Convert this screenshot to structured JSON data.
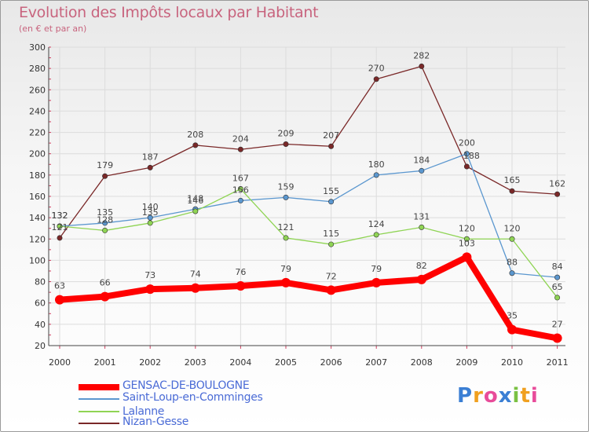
{
  "chart_data": {
    "type": "line",
    "title": "Evolution des Impôts locaux par Habitant",
    "subtitle": "(en € et par an)",
    "xlabel": "",
    "ylabel": "",
    "ylim": [
      20,
      300
    ],
    "y_ticks": [
      "20",
      "40",
      "60",
      "80",
      "100",
      "120",
      "140",
      "160",
      "180",
      "200",
      "220",
      "240",
      "260",
      "280",
      "300"
    ],
    "categories": [
      "2000",
      "2001",
      "2002",
      "2003",
      "2004",
      "2005",
      "2006",
      "2007",
      "2008",
      "2009",
      "2010",
      "2011"
    ],
    "grid": true,
    "legend_position": "bottom-left",
    "series": [
      {
        "name": "Nizan-Gesse",
        "color": "#7a2828",
        "values": [
          121,
          179,
          187,
          208,
          204,
          209,
          207,
          270,
          282,
          188,
          165,
          162
        ]
      },
      {
        "name": "Saint-Loup-en-Comminges",
        "color": "#5b97cf",
        "values": [
          132,
          135,
          140,
          148,
          156,
          159,
          155,
          180,
          184,
          200,
          88,
          84
        ]
      },
      {
        "name": "Lalanne",
        "color": "#8fd454",
        "values": [
          132,
          128,
          135,
          146,
          167,
          121,
          115,
          124,
          131,
          120,
          120,
          65
        ]
      },
      {
        "name": "GENSAC-DE-BOULOGNE",
        "color": "#ff0000",
        "values": [
          63,
          66,
          73,
          74,
          76,
          79,
          72,
          79,
          82,
          103,
          35,
          27
        ]
      }
    ],
    "data_labels": [
      [
        {
          "text": "121",
          "dx": 0,
          "dy": -10
        },
        {
          "text": "179",
          "dx": 0,
          "dy": -10
        },
        {
          "text": "187",
          "dx": 0,
          "dy": -10
        },
        {
          "text": "208",
          "dx": 0,
          "dy": -10
        },
        {
          "text": "204",
          "dx": 0,
          "dy": -10
        },
        {
          "text": "209",
          "dx": 0,
          "dy": -10
        },
        {
          "text": "207",
          "dx": 0,
          "dy": -10
        },
        {
          "text": "270",
          "dx": 0,
          "dy": -10
        },
        {
          "text": "282",
          "dx": 0,
          "dy": -10
        },
        {
          "text": "188",
          "dx": 6,
          "dy": -10
        },
        {
          "text": "165",
          "dx": 0,
          "dy": -10
        },
        {
          "text": "162",
          "dx": 0,
          "dy": -10
        }
      ],
      [
        {
          "text": "132",
          "dx": 0,
          "dy": -10
        },
        {
          "text": "135",
          "dx": 0,
          "dy": -10
        },
        {
          "text": "140",
          "dx": 0,
          "dy": -10
        },
        {
          "text": "148",
          "dx": 0,
          "dy": -10
        },
        {
          "text": "156",
          "dx": 0,
          "dy": -10
        },
        {
          "text": "159",
          "dx": 0,
          "dy": -10
        },
        {
          "text": "155",
          "dx": 0,
          "dy": -10
        },
        {
          "text": "180",
          "dx": 0,
          "dy": -10
        },
        {
          "text": "184",
          "dx": 0,
          "dy": -10
        },
        {
          "text": "200",
          "dx": 0,
          "dy": -10
        },
        {
          "text": "88",
          "dx": 0,
          "dy": -10
        },
        {
          "text": "84",
          "dx": 0,
          "dy": -10
        }
      ],
      [
        {
          "text": "132",
          "dx": 0,
          "dy": -10
        },
        {
          "text": "128",
          "dx": 0,
          "dy": -10
        },
        {
          "text": "135",
          "dx": 0,
          "dy": -10
        },
        {
          "text": "146",
          "dx": 0,
          "dy": -10
        },
        {
          "text": "167",
          "dx": 0,
          "dy": -10
        },
        {
          "text": "121",
          "dx": 0,
          "dy": -10
        },
        {
          "text": "115",
          "dx": 0,
          "dy": -10
        },
        {
          "text": "124",
          "dx": 0,
          "dy": -10
        },
        {
          "text": "131",
          "dx": 0,
          "dy": -10
        },
        {
          "text": "120",
          "dx": 0,
          "dy": -10
        },
        {
          "text": "120",
          "dx": 0,
          "dy": -10
        },
        {
          "text": "65",
          "dx": 0,
          "dy": -10
        }
      ],
      [
        {
          "text": "63",
          "dx": 0,
          "dy": -14
        },
        {
          "text": "66",
          "dx": 0,
          "dy": -14
        },
        {
          "text": "73",
          "dx": 0,
          "dy": -14
        },
        {
          "text": "74",
          "dx": 0,
          "dy": -14
        },
        {
          "text": "76",
          "dx": 0,
          "dy": -14
        },
        {
          "text": "79",
          "dx": 0,
          "dy": -14
        },
        {
          "text": "72",
          "dx": 0,
          "dy": -14
        },
        {
          "text": "79",
          "dx": 0,
          "dy": -14
        },
        {
          "text": "82",
          "dx": 0,
          "dy": -14
        },
        {
          "text": "103",
          "dx": 0,
          "dy": -14
        },
        {
          "text": "35",
          "dx": 0,
          "dy": -14
        },
        {
          "text": "27",
          "dx": 0,
          "dy": -14
        }
      ]
    ]
  },
  "legend": {
    "items": [
      {
        "label": "GENSAC-DE-BOULOGNE",
        "color": "#ff0000"
      },
      {
        "label": "Saint-Loup-en-Comminges",
        "color": "#5b97cf"
      },
      {
        "label": "Lalanne",
        "color": "#8fd454"
      },
      {
        "label": "Nizan-Gesse",
        "color": "#7a2828"
      }
    ]
  },
  "logo": {
    "letters": [
      "P",
      "r",
      "o",
      "x",
      "i",
      "t",
      "i"
    ],
    "colors": [
      "#3b7fd4",
      "#f0a020",
      "#e84c9a",
      "#3b7fd4",
      "#7ac143",
      "#f0a020",
      "#e84c9a"
    ]
  }
}
